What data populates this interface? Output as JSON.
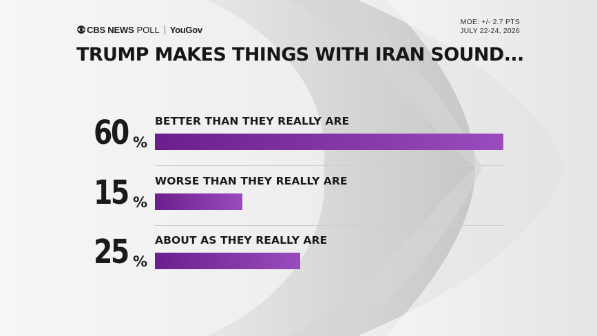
{
  "header": {
    "brand_cbs": "CBS NEWS",
    "brand_poll": "POLL",
    "brand_yougov": "YouGov",
    "moe": "MOE: +/- 2.7 PTS",
    "dates": "JULY 22-24, 2026"
  },
  "colors": {
    "bar_start": "#6b1f8c",
    "bar_end": "#9a4bbd",
    "text": "#1a1a1a"
  },
  "chart_data": {
    "type": "bar",
    "orientation": "horizontal",
    "title": "TRUMP MAKES THINGS WITH IRAN SOUND...",
    "xlabel": "",
    "ylabel": "",
    "unit": "%",
    "xlim": [
      0,
      60
    ],
    "grid": false,
    "categories": [
      "BETTER THAN THEY REALLY ARE",
      "WORSE THAN THEY REALLY ARE",
      "ABOUT AS THEY REALLY ARE"
    ],
    "values": [
      60,
      15,
      25
    ],
    "value_labels": [
      "60",
      "15",
      "25"
    ],
    "percent_sign": "%"
  }
}
